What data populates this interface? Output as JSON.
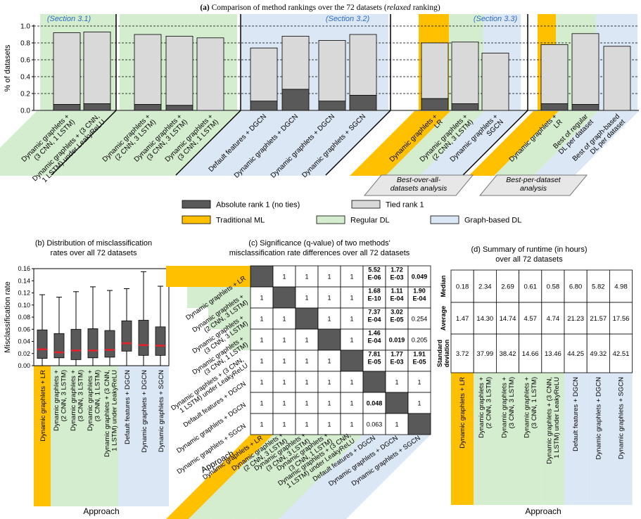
{
  "colors": {
    "abs": "#595959",
    "tied": "#d9d9d9",
    "trad": "#ffc000",
    "regular": "#d4edcf",
    "graph": "#dbe7f5",
    "section": "#2e6cc1"
  },
  "legend": {
    "abs": "Absolute rank 1 (no ties)",
    "tied": "Tied rank 1",
    "trad": "Traditional ML",
    "regular": "Regular DL",
    "graph": "Graph-based DL"
  },
  "panel_a": {
    "title_prefix": "(a)",
    "title_main": "Comparison of method rankings over the 72 datasets (",
    "title_italic": "relaxed",
    "title_end": " ranking)",
    "section_labels": [
      "(Section 3.1)",
      "(Section 3.2)",
      "(Section 3.3)"
    ],
    "ylabel": "% of datasets",
    "yticks": [
      "0.0",
      "0.2",
      "0.4",
      "0.6",
      "0.8",
      "1.0"
    ],
    "group_notes": [
      "Best-over-all-\ndatasets analysis",
      "Best-per-dataset\nanalysis"
    ]
  },
  "panel_b": {
    "title": "(b)  Distribution of misclassification\nrates over all 72 datasets",
    "ylabel": "Misclassification rate",
    "xlabel": "Approach",
    "yticks": [
      "0.00",
      "0.02",
      "0.04",
      "0.06",
      "0.08",
      "0.10",
      "0.12",
      "0.14",
      "0.16"
    ]
  },
  "panel_c": {
    "title": "(c)  Significance (q-value) of two methods'\nmisclassification rate differences over all 72 datasets",
    "axis_label": "Approach",
    "labels": [
      "Dynamic graphlets + LR",
      "Dynamic graphlets +\n(2 CNN, 3 LSTM)",
      "Dynamic graphlets +\n(3 CNN, 3 LSTM)",
      "Dynamic graphlets +\n(3 CNN, 1 LSTM)",
      "Dynamic graphlets + (3 CNN,\n1 LSTM) under LeakyReLU",
      "Default features + DGCN",
      "Dynamic graphlets + DGCN",
      "Dynamic graphlets + SGCN"
    ]
  },
  "panel_d": {
    "title": "(d)  Summary of runtime (in hours)\nover all 72 datasets",
    "xlabel": "Approach",
    "row_labels": [
      "Median",
      "Average",
      "Standard\ndeviation"
    ],
    "col_labels": [
      "Dynamic graphlets + LR",
      "Dynamic graphlets +\n(2 CNN, 3 LSTM)",
      "Dynamic graphlets +\n(3 CNN, 3 LSTM)",
      "Dynamic graphlets +\n(3 CNN, 1 LSTM)",
      "Dynamic graphlets + (3 CNN,\n1 LSTM) under LeakyReLU",
      "Default features + DGCN",
      "Dynamic graphlets + DGCN",
      "Dynamic graphlets + SGCN"
    ],
    "col_groups": [
      "trad",
      "regular",
      "regular",
      "regular",
      "regular",
      "graph",
      "graph",
      "graph"
    ],
    "rows": [
      [
        "0.18",
        "2.34",
        "2.69",
        "0.61",
        "0.58",
        "6.80",
        "5.82",
        "4.98"
      ],
      [
        "1.47",
        "14.30",
        "14.74",
        "4.57",
        "4.74",
        "21.23",
        "21.57",
        "17.56"
      ],
      [
        "3.72",
        "37.99",
        "38.42",
        "14.66",
        "13.46",
        "44.25",
        "49.32",
        "42.51"
      ]
    ]
  },
  "chart_data": [
    {
      "panel": "a",
      "type": "bar",
      "title": "Comparison of method rankings over the 72 datasets (relaxed ranking)",
      "ylabel": "% of datasets",
      "ylim": [
        0,
        1.0
      ],
      "grid": "dashed horizontal at 0.2 steps",
      "legend_placement": "bottom",
      "categories": [
        "Dynamic graphlets +\n(3 CNN, 1 LSTM)",
        "Dynamic graphlets + (3 CNN,\n1 LSTM) under LeakyReLU",
        "Dynamic graphlets +\n(2 CNN, 3 LSTM)",
        "Dynamic graphlets +\n(3 CNN, 3 LSTM)",
        "Dynamic graphlets +\n(3 CNN, 1 LSTM)",
        "Default features + DGCN",
        "Dynamic graphlets + DGCN",
        "Dynamic graphlets + DGCN",
        "Dynamic graphlets + SGCN",
        "Dynamic graphlets +\nLR",
        "Dynamic graphlets +\n(2 CNN, 3 LSTM)",
        "Dynamic graphlets +\nSGCN",
        "Dynamic graphlets +\nLR",
        "Best of regular\nDL per dataset",
        "Best of graph-based\nDL per dataset"
      ],
      "groups": [
        "regular",
        "regular",
        "regular",
        "regular",
        "regular",
        "graph",
        "graph",
        "graph",
        "graph",
        "trad",
        "regular",
        "graph",
        "trad",
        "regular",
        "graph"
      ],
      "series": [
        {
          "name": "Absolute rank 1 (no ties)",
          "values": [
            0.07,
            0.08,
            0.07,
            0.06,
            0.0,
            0.11,
            0.25,
            0.11,
            0.18,
            0.14,
            0.08,
            0.0,
            0.08,
            0.07,
            0.0
          ]
        },
        {
          "name": "Tied rank 1",
          "values": [
            0.85,
            0.85,
            0.83,
            0.82,
            0.86,
            0.63,
            0.63,
            0.72,
            0.72,
            0.66,
            0.73,
            0.68,
            0.7,
            0.84,
            0.76
          ]
        }
      ]
    },
    {
      "panel": "b",
      "type": "box",
      "title": "Distribution of misclassification rates over all 72 datasets",
      "ylabel": "Misclassification rate",
      "xlabel": "Approach",
      "ylim": [
        0,
        0.16
      ],
      "categories": [
        "Dynamic graphlets + LR",
        "Dynamic graphlets +\n(2 CNN, 3 LSTM)",
        "Dynamic graphlets +\n(3 CNN, 3 LSTM)",
        "Dynamic graphlets +\n(3 CNN, 1 LSTM)",
        "Dynamic graphlets + (3 CNN,\n1 LSTM) under LeakyReLU",
        "Default features + DGCN",
        "Dynamic graphlets + DGCN",
        "Dynamic graphlets + SGCN"
      ],
      "groups": [
        "trad",
        "regular",
        "regular",
        "regular",
        "regular",
        "graph",
        "graph",
        "graph"
      ],
      "boxes": [
        {
          "min": 0.0,
          "q1": 0.012,
          "median": 0.027,
          "q3": 0.059,
          "max": 0.117
        },
        {
          "min": 0.0,
          "q1": 0.013,
          "median": 0.022,
          "q3": 0.053,
          "max": 0.113
        },
        {
          "min": 0.0,
          "q1": 0.01,
          "median": 0.025,
          "q3": 0.06,
          "max": 0.122
        },
        {
          "min": 0.0,
          "q1": 0.013,
          "median": 0.025,
          "q3": 0.061,
          "max": 0.13
        },
        {
          "min": 0.0,
          "q1": 0.014,
          "median": 0.026,
          "q3": 0.058,
          "max": 0.124
        },
        {
          "min": 0.0,
          "q1": 0.024,
          "median": 0.037,
          "q3": 0.074,
          "max": 0.127
        },
        {
          "min": 0.0,
          "q1": 0.017,
          "median": 0.034,
          "q3": 0.075,
          "max": 0.155
        },
        {
          "min": 0.0,
          "q1": 0.017,
          "median": 0.033,
          "q3": 0.064,
          "max": 0.131
        }
      ]
    },
    {
      "panel": "c",
      "type": "heatmap",
      "title": "Significance (q-value) of two methods' misclassification rate differences over all 72 datasets",
      "matrix": [
        [
          "",
          "1",
          "1",
          "1",
          "1",
          "5.52\nE-06",
          "1.72\nE-03",
          "0.049"
        ],
        [
          "1",
          "",
          "1",
          "1",
          "1",
          "1.68\nE-10",
          "1.11\nE-04",
          "1.90\nE-04"
        ],
        [
          "1",
          "1",
          "",
          "1",
          "1",
          "7.37\nE-04",
          "3.02\nE-05",
          "0.254"
        ],
        [
          "1",
          "1",
          "1",
          "",
          "1",
          "1.46\nE-04",
          "0.019",
          "0.205"
        ],
        [
          "1",
          "1",
          "1",
          "1",
          "",
          "7.81\nE-05",
          "1.77\nE-03",
          "1.91\nE-05"
        ],
        [
          "1",
          "1",
          "1",
          "1",
          "1",
          "",
          "1",
          "1"
        ],
        [
          "1",
          "1",
          "1",
          "1",
          "1",
          "0.048",
          "",
          "1"
        ],
        [
          "1",
          "1",
          "1",
          "1",
          "1",
          "0.063",
          "1",
          ""
        ]
      ],
      "significant": [
        [
          false,
          false,
          false,
          false,
          false,
          true,
          true,
          true
        ],
        [
          false,
          false,
          false,
          false,
          false,
          true,
          true,
          true
        ],
        [
          false,
          false,
          false,
          false,
          false,
          true,
          true,
          false
        ],
        [
          false,
          false,
          false,
          false,
          false,
          true,
          true,
          false
        ],
        [
          false,
          false,
          false,
          false,
          false,
          true,
          true,
          true
        ],
        [
          false,
          false,
          false,
          false,
          false,
          false,
          false,
          false
        ],
        [
          false,
          false,
          false,
          false,
          false,
          true,
          false,
          false
        ],
        [
          false,
          false,
          false,
          false,
          false,
          false,
          false,
          false
        ]
      ]
    },
    {
      "panel": "d",
      "type": "table",
      "title": "Summary of runtime (in hours) over all 72 datasets",
      "row_labels": [
        "Median",
        "Average",
        "Standard deviation"
      ]
    }
  ]
}
